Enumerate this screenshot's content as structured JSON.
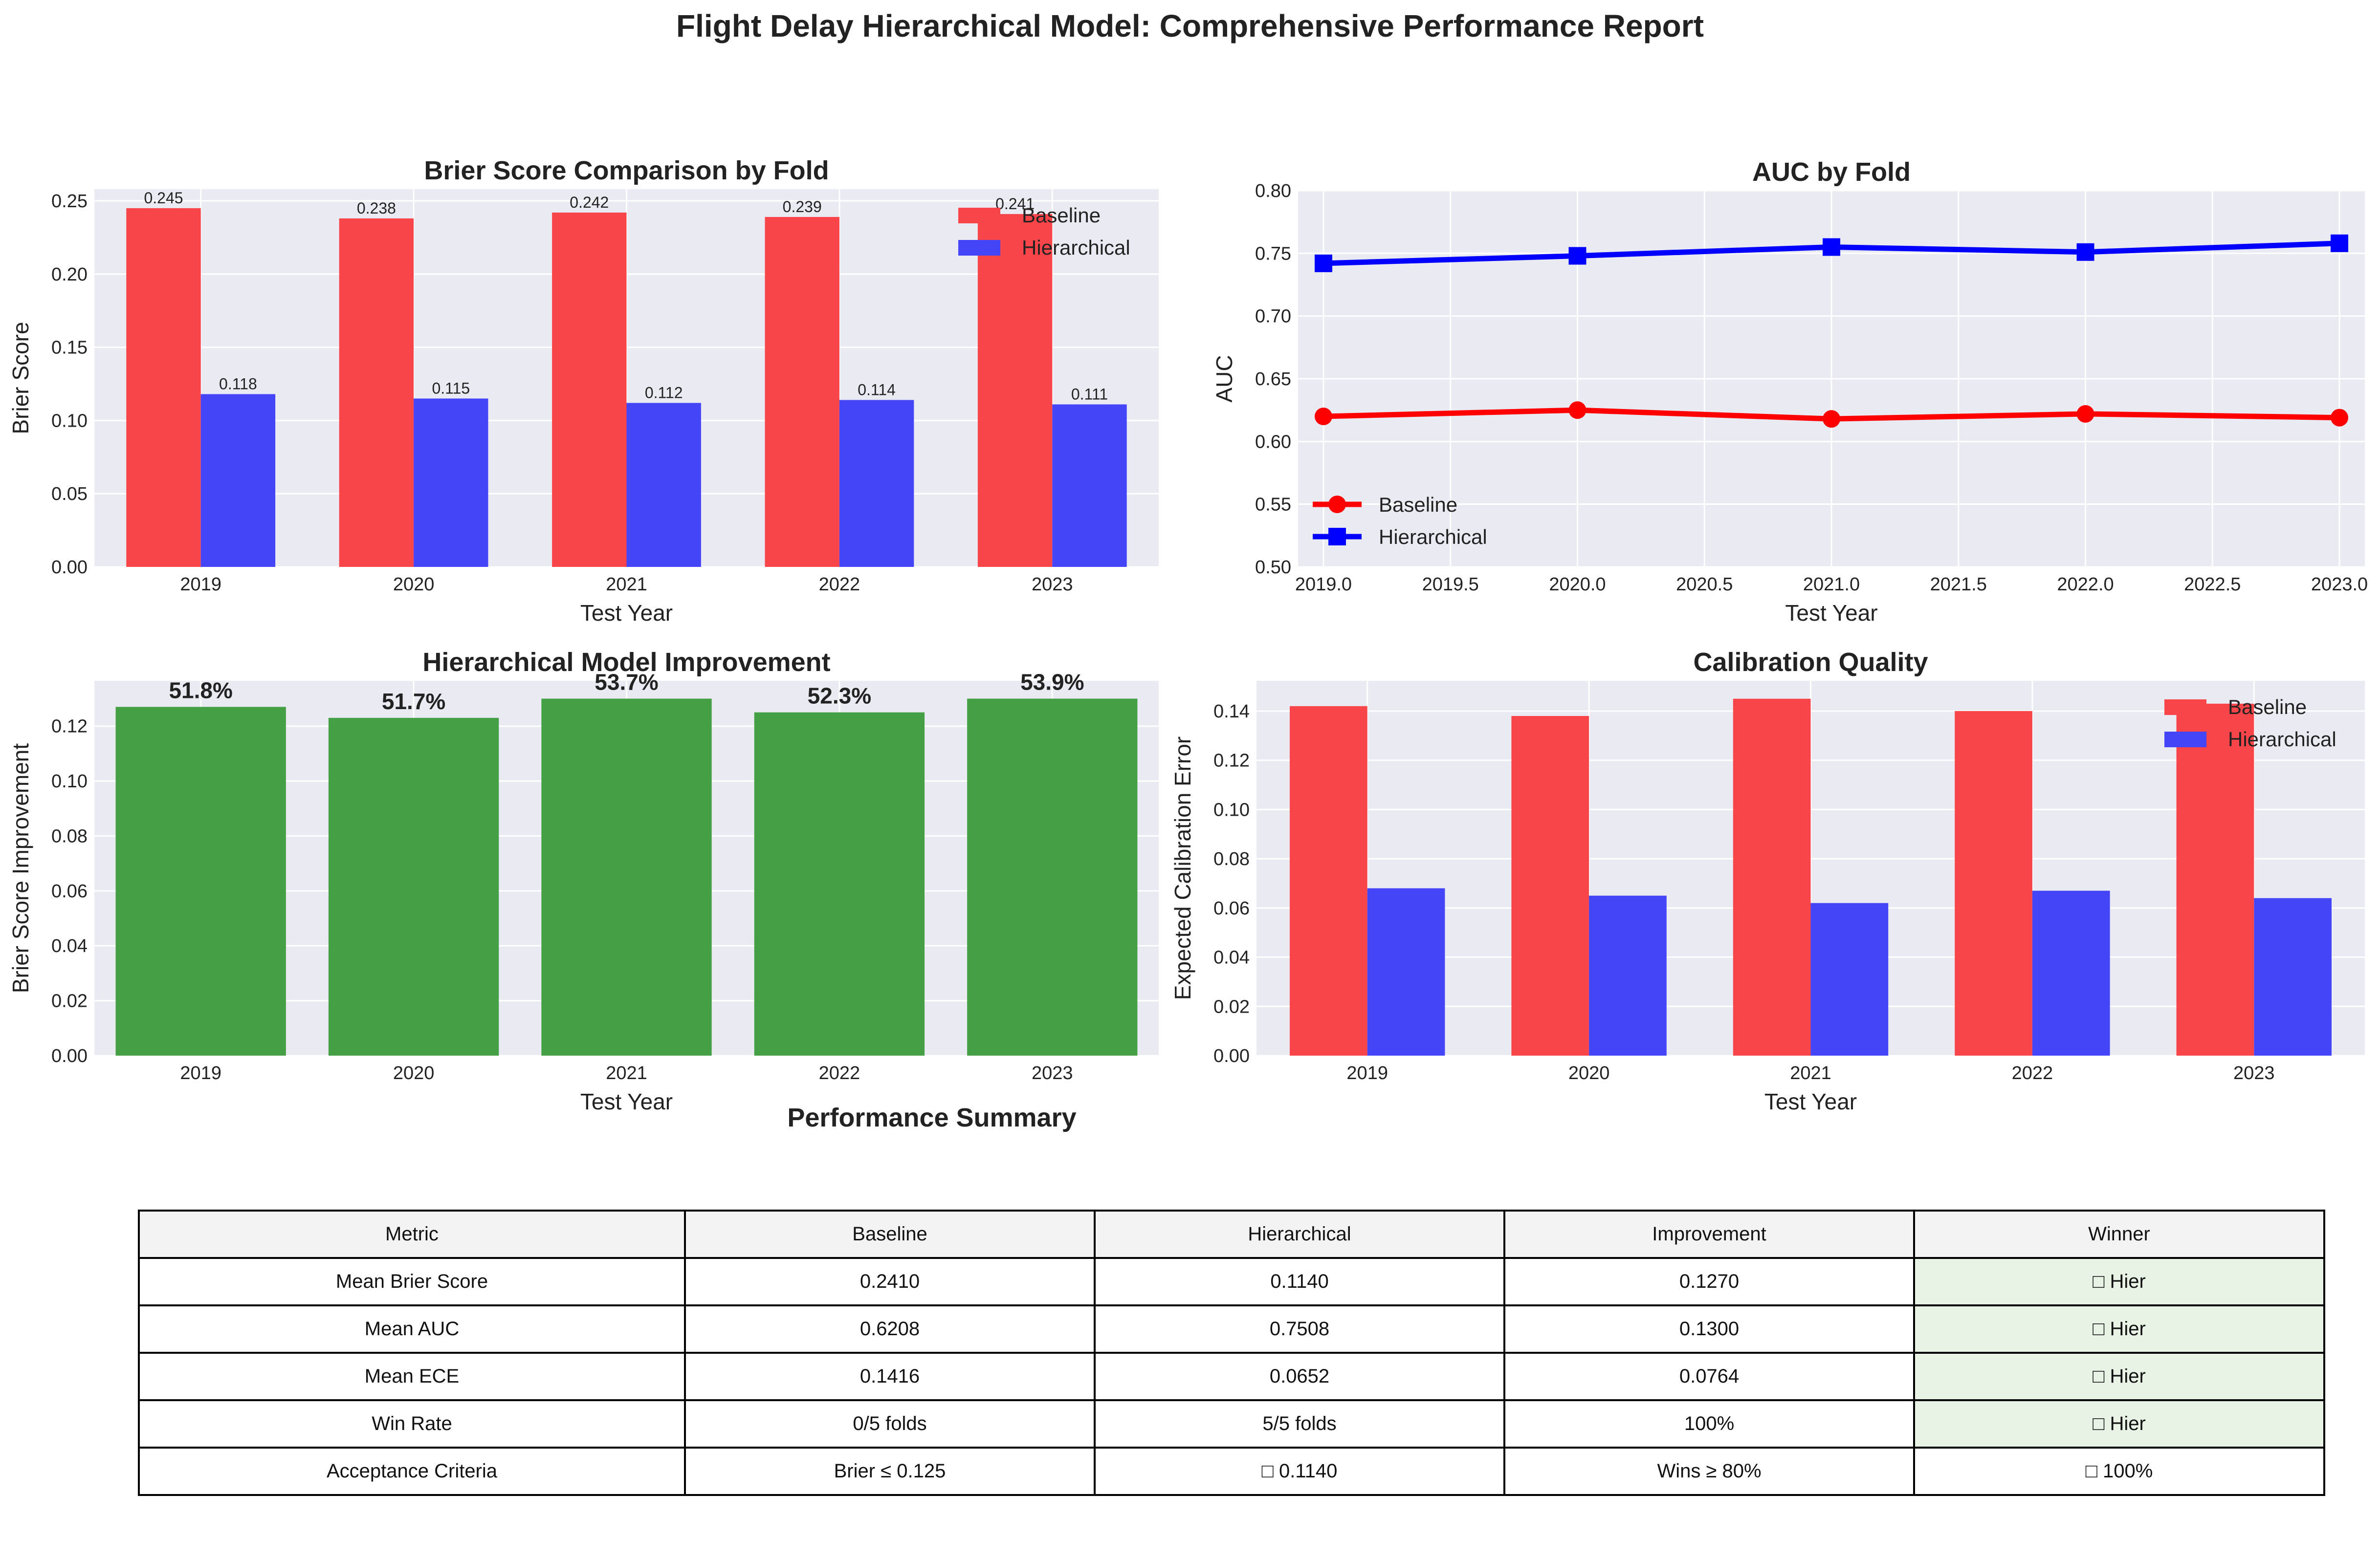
{
  "figure": {
    "title": "Flight Delay Hierarchical Model: Comprehensive Performance Report",
    "table_title": "Performance Summary"
  },
  "colors": {
    "baseline": "#f8454a",
    "hierarchical": "#4545f8",
    "improvement": "#459f45",
    "baseline_line": "#ff0000",
    "hierarchical_line": "#0000ff",
    "winner_bg": "#e8f3e6",
    "plot_bg": "#eaeaf2"
  },
  "chart_data": [
    {
      "id": "brier",
      "type": "bar",
      "title": "Brier Score Comparison by Fold",
      "xlabel": "Test Year",
      "ylabel": "Brier Score",
      "categories": [
        "2019",
        "2020",
        "2021",
        "2022",
        "2023"
      ],
      "series": [
        {
          "name": "Baseline",
          "values": [
            0.245,
            0.238,
            0.242,
            0.239,
            0.241
          ]
        },
        {
          "name": "Hierarchical",
          "values": [
            0.118,
            0.115,
            0.112,
            0.114,
            0.111
          ]
        }
      ],
      "data_labels": [
        [
          "0.245",
          "0.238",
          "0.242",
          "0.239",
          "0.241"
        ],
        [
          "0.118",
          "0.115",
          "0.112",
          "0.114",
          "0.111"
        ]
      ],
      "ylim": [
        0,
        0.258
      ],
      "yticks": [
        0,
        0.05,
        0.1,
        0.15,
        0.2,
        0.25
      ],
      "ytick_labels": [
        "0.00",
        "0.05",
        "0.10",
        "0.15",
        "0.20",
        "0.25"
      ],
      "legend": "top-right",
      "grid": true
    },
    {
      "id": "auc",
      "type": "line",
      "title": "AUC by Fold",
      "xlabel": "Test Year",
      "ylabel": "AUC",
      "x": [
        2019,
        2020,
        2021,
        2022,
        2023
      ],
      "series": [
        {
          "name": "Baseline",
          "values": [
            0.62,
            0.625,
            0.618,
            0.622,
            0.619
          ],
          "marker": "circle"
        },
        {
          "name": "Hierarchical",
          "values": [
            0.742,
            0.748,
            0.755,
            0.751,
            0.758
          ],
          "marker": "square"
        }
      ],
      "xlim": [
        2018.9,
        2023.1
      ],
      "ylim": [
        0.5,
        0.8
      ],
      "xticks": [
        2019,
        2019.5,
        2020,
        2020.5,
        2021,
        2021.5,
        2022,
        2022.5,
        2023
      ],
      "xtick_labels": [
        "2019.0",
        "2019.5",
        "2020.0",
        "2020.5",
        "2021.0",
        "2021.5",
        "2022.0",
        "2022.5",
        "2023.0"
      ],
      "yticks": [
        0.5,
        0.55,
        0.6,
        0.65,
        0.7,
        0.75,
        0.8
      ],
      "ytick_labels": [
        "0.50",
        "0.55",
        "0.60",
        "0.65",
        "0.70",
        "0.75",
        "0.80"
      ],
      "legend": "lower-left",
      "grid": true
    },
    {
      "id": "improvement",
      "type": "bar",
      "title": "Hierarchical Model Improvement",
      "xlabel": "Test Year",
      "ylabel": "Brier Score Improvement",
      "categories": [
        "2019",
        "2020",
        "2021",
        "2022",
        "2023"
      ],
      "series": [
        {
          "values": [
            0.127,
            0.123,
            0.13,
            0.125,
            0.13
          ]
        }
      ],
      "data_labels": [
        [
          "51.8%",
          "51.7%",
          "53.7%",
          "52.3%",
          "53.9%"
        ]
      ],
      "ylim": [
        0,
        0.1365
      ],
      "yticks": [
        0,
        0.02,
        0.04,
        0.06,
        0.08,
        0.1,
        0.12
      ],
      "ytick_labels": [
        "0.00",
        "0.02",
        "0.04",
        "0.06",
        "0.08",
        "0.10",
        "0.12"
      ],
      "grid": true
    },
    {
      "id": "calibration",
      "type": "bar",
      "title": "Calibration Quality",
      "xlabel": "Test Year",
      "ylabel": "Expected Calibration Error",
      "categories": [
        "2019",
        "2020",
        "2021",
        "2022",
        "2023"
      ],
      "series": [
        {
          "name": "Baseline",
          "values": [
            0.142,
            0.138,
            0.145,
            0.14,
            0.143
          ]
        },
        {
          "name": "Hierarchical",
          "values": [
            0.068,
            0.065,
            0.062,
            0.067,
            0.064
          ]
        }
      ],
      "ylim": [
        0,
        0.1523
      ],
      "yticks": [
        0,
        0.02,
        0.04,
        0.06,
        0.08,
        0.1,
        0.12,
        0.14
      ],
      "ytick_labels": [
        "0.00",
        "0.02",
        "0.04",
        "0.06",
        "0.08",
        "0.10",
        "0.12",
        "0.14"
      ],
      "legend": "top-right",
      "grid": true
    }
  ],
  "summary_table": {
    "header": [
      "Metric",
      "Baseline",
      "Hierarchical",
      "Improvement",
      "Winner"
    ],
    "rows": [
      [
        "Mean Brier Score",
        "0.2410",
        "0.1140",
        "0.1270",
        "□ Hier"
      ],
      [
        "Mean AUC",
        "0.6208",
        "0.7508",
        "0.1300",
        "□ Hier"
      ],
      [
        "Mean ECE",
        "0.1416",
        "0.0652",
        "0.0764",
        "□ Hier"
      ],
      [
        "Win Rate",
        "0/5 folds",
        "5/5 folds",
        "100%",
        "□ Hier"
      ],
      [
        "Acceptance Criteria",
        "Brier ≤ 0.125",
        "□ 0.1140",
        "Wins ≥ 80%",
        "□ 100%"
      ]
    ]
  }
}
